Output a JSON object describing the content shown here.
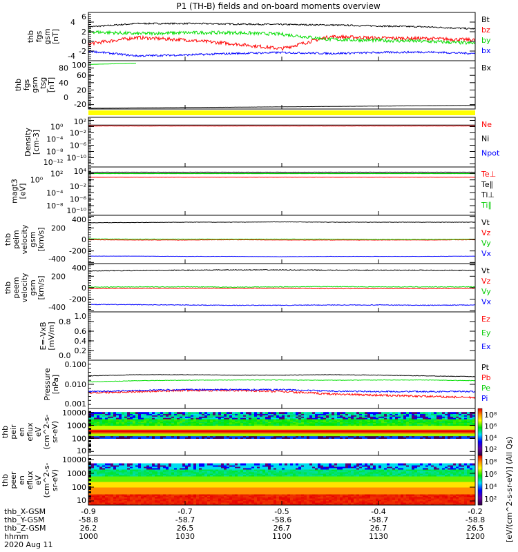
{
  "title": "P1 (TH-B) fields and on-board moments overview",
  "chart_data": [
    {
      "type": "line",
      "ylabel": [
        "thb",
        "fgs",
        "gsm",
        "[nT]"
      ],
      "log": false,
      "ylim": [
        -4,
        6
      ],
      "ticks": [
        "-4",
        "-2",
        "0",
        "2",
        "4",
        "6"
      ],
      "tickvals": [
        -4,
        -2,
        0,
        2,
        4,
        6
      ],
      "series": [
        {
          "name": "Bt",
          "color": "#000000",
          "values": [
            3.0,
            3.7,
            3.7,
            3.6,
            3.5,
            3.4,
            3.2,
            3.0,
            2.6
          ],
          "noise": 0.15
        },
        {
          "name": "bz",
          "color": "#ff0000",
          "values": [
            -0.5,
            0.8,
            0.3,
            -0.5,
            -1.5,
            1.0,
            0.7,
            0.6,
            0.3
          ],
          "noise": 0.35
        },
        {
          "name": "by",
          "color": "#00dd00",
          "values": [
            2.0,
            1.6,
            1.8,
            1.8,
            1.5,
            0.4,
            0.2,
            0.0,
            -0.4
          ],
          "noise": 0.35
        },
        {
          "name": "bx",
          "color": "#0000ff",
          "values": [
            -2.0,
            -3.0,
            -2.8,
            -2.5,
            -2.3,
            -2.5,
            -2.3,
            -2.2,
            -2.5
          ],
          "noise": 0.2
        }
      ]
    },
    {
      "type": "line",
      "ylabel": [
        "thb",
        "fgs",
        "gsm",
        "_tsg",
        "[nT]"
      ],
      "log": false,
      "ylim": [
        -32,
        100
      ],
      "ticks": [
        "-20",
        "0",
        "20",
        "40",
        "60",
        "80",
        "100"
      ],
      "tickvals": [
        -20,
        0,
        20,
        40,
        60,
        80,
        100
      ],
      "series": [
        {
          "name": "Bx",
          "color": "#000000",
          "values": [
            -30,
            -29,
            -28,
            -27,
            -26,
            -25,
            -24,
            -23,
            -22
          ],
          "noise": 0.2
        },
        {
          "name": "",
          "color": "#00dd00",
          "values": [
            90,
            93,
            null,
            null,
            null,
            null,
            null,
            null,
            null
          ],
          "noise": 0.2
        }
      ]
    },
    {
      "type": "line",
      "ylabel": [
        "Density",
        "[cm-3]"
      ],
      "log": true,
      "ylim": [
        -13,
        3
      ],
      "ticks": [
        "10⁻¹²",
        "10⁻¹⁰",
        "10⁻⁸",
        "10⁻⁶",
        "10⁻⁴",
        "10⁻²",
        "10⁰",
        "10²"
      ],
      "tickvals": [
        -12,
        -10,
        -8,
        -6,
        -4,
        -2,
        0,
        2
      ],
      "series": [
        {
          "name": "Ne",
          "color": "#ff0000",
          "values": [
            0.2,
            0.2,
            0.2,
            0.2,
            0.2,
            0.2,
            0.2,
            0.2,
            0.2
          ],
          "noise": 0.02
        },
        {
          "name": "Ni",
          "color": "#000000",
          "values": [
            0.5,
            0.5,
            0.5,
            0.5,
            0.5,
            0.5,
            0.5,
            0.5,
            0.5
          ],
          "noise": 0.01
        },
        {
          "name": "Npot",
          "color": "#0000ff",
          "values": [
            null,
            null,
            null,
            null,
            null,
            null,
            null,
            null,
            null
          ],
          "noise": 0
        }
      ]
    },
    {
      "type": "line",
      "ylabel": [
        "magt3",
        "[eV]"
      ],
      "log": true,
      "ylim": [
        -11,
        4
      ],
      "ticks": [
        "10⁻¹⁰",
        "10⁻⁸",
        "10⁻⁶",
        "10⁻⁴",
        "10⁻²",
        "10⁰",
        "10²",
        "10⁴"
      ],
      "tickvals": [
        -10,
        -8,
        -6,
        -4,
        -2,
        0,
        2,
        4
      ],
      "series": [
        {
          "name": "Te⊥",
          "color": "#ff0000",
          "values": [
            0.8,
            0.8,
            0.8,
            0.8,
            0.8,
            0.8,
            0.8,
            0.8,
            0.8
          ],
          "noise": 0.02
        },
        {
          "name": "Te∥",
          "color": "#000000",
          "values": [
            2.4,
            2.4,
            2.4,
            2.4,
            2.4,
            2.4,
            2.4,
            2.4,
            2.4
          ],
          "noise": 0.01
        },
        {
          "name": "Ti⊥",
          "color": "#000000",
          "values": [
            2.0,
            2.0,
            2.0,
            2.0,
            2.0,
            2.0,
            2.0,
            2.0,
            2.0
          ],
          "noise": 0.01
        },
        {
          "name": "Ti∥",
          "color": "#00dd00",
          "values": [
            1.95,
            1.95,
            1.95,
            1.95,
            1.95,
            1.95,
            1.95,
            1.95,
            1.95
          ],
          "noise": 0.01
        }
      ]
    },
    {
      "type": "line",
      "ylabel": [
        "thb",
        "peim",
        "velocity",
        "gsm",
        "[km/s]"
      ],
      "log": false,
      "ylim": [
        -420,
        420
      ],
      "ticks": [
        "-400",
        "-200",
        "0",
        "200",
        "400"
      ],
      "tickvals": [
        -400,
        -200,
        0,
        200,
        400
      ],
      "series": [
        {
          "name": "Vt",
          "color": "#000000",
          "values": [
            290,
            295,
            300,
            300,
            305,
            300,
            300,
            300,
            300
          ],
          "noise": 3
        },
        {
          "name": "Vz",
          "color": "#ff0000",
          "values": [
            -5,
            -10,
            -10,
            -5,
            -10,
            -10,
            -10,
            -10,
            -5
          ],
          "noise": 3
        },
        {
          "name": "Vy",
          "color": "#00dd00",
          "values": [
            10,
            5,
            5,
            5,
            5,
            5,
            0,
            0,
            5
          ],
          "noise": 3
        },
        {
          "name": "Vx",
          "color": "#0000ff",
          "values": [
            -290,
            -290,
            -295,
            -295,
            -300,
            -295,
            -295,
            -295,
            -290
          ],
          "noise": 2
        }
      ]
    },
    {
      "type": "line",
      "ylabel": [
        "thb",
        "peem",
        "velocity",
        "gsm",
        "[km/s]"
      ],
      "log": false,
      "ylim": [
        -420,
        420
      ],
      "ticks": [
        "-400",
        "-200",
        "0",
        "200",
        "400"
      ],
      "tickvals": [
        -400,
        -200,
        0,
        200,
        400
      ],
      "series": [
        {
          "name": "Vt",
          "color": "#000000",
          "values": [
            290,
            300,
            305,
            310,
            310,
            305,
            305,
            305,
            300
          ],
          "noise": 7
        },
        {
          "name": "Vz",
          "color": "#ff0000",
          "values": [
            -15,
            -10,
            -10,
            -10,
            -10,
            -15,
            -15,
            -15,
            -10
          ],
          "noise": 5
        },
        {
          "name": "Vy",
          "color": "#00dd00",
          "values": [
            10,
            15,
            15,
            10,
            15,
            20,
            15,
            15,
            15
          ],
          "noise": 6
        },
        {
          "name": "Vx",
          "color": "#0000ff",
          "values": [
            -290,
            -295,
            -300,
            -305,
            -305,
            -300,
            -300,
            -305,
            -300
          ],
          "noise": 6
        }
      ]
    },
    {
      "type": "line",
      "ylabel": [
        "E=-VxB",
        "[mV/m]"
      ],
      "log": false,
      "ylim": [
        0,
        1
      ],
      "ticks": [
        "0.0",
        "0.2",
        "0.4",
        "0.6",
        "0.8",
        "1.0"
      ],
      "tickvals": [
        0,
        0.2,
        0.4,
        0.6,
        0.8,
        1.0
      ],
      "series": [
        {
          "name": "Ez",
          "color": "#ff0000",
          "values": [],
          "noise": 0
        },
        {
          "name": "Ey",
          "color": "#00dd00",
          "values": [],
          "noise": 0
        },
        {
          "name": "Ex",
          "color": "#0000ff",
          "values": [],
          "noise": 0
        }
      ]
    },
    {
      "type": "line",
      "ylabel": [
        "Pressure",
        "[nPa]"
      ],
      "log": true,
      "ylim": [
        -3,
        -1
      ],
      "ticks": [
        "0.001",
        "0.010",
        "0.100"
      ],
      "tickvals": [
        -3,
        -2,
        -1
      ],
      "series": [
        {
          "name": "Pt",
          "color": "#000000",
          "values": [
            -1.65,
            -1.6,
            -1.6,
            -1.62,
            -1.62,
            -1.6,
            -1.62,
            -1.65,
            -1.68
          ],
          "noise": 0.01
        },
        {
          "name": "Pb",
          "color": "#ff0000",
          "values": [
            -2.35,
            -2.3,
            -2.25,
            -2.25,
            -2.3,
            -2.4,
            -2.45,
            -2.5,
            -2.55
          ],
          "noise": 0.04
        },
        {
          "name": "Pe",
          "color": "#00dd00",
          "values": [
            -1.9,
            -1.85,
            -1.83,
            -1.82,
            -1.82,
            -1.83,
            -1.82,
            -1.82,
            -1.85
          ],
          "noise": 0.01
        },
        {
          "name": "Pi",
          "color": "#0000ff",
          "values": [
            -2.3,
            -2.25,
            -2.22,
            -2.22,
            -2.22,
            -2.28,
            -2.3,
            -2.3,
            -2.3
          ],
          "noise": 0.03
        }
      ]
    },
    {
      "type": "heatmap",
      "ylabel": [
        "thb",
        "peir",
        "en",
        "eflux",
        "eV",
        "(cm^2-s-",
        "sr-eV)"
      ],
      "log": true,
      "ylim": [
        0.7,
        4.3
      ],
      "ticks": [
        "10",
        "100",
        "1000",
        "10000"
      ],
      "tickvals": [
        1,
        2,
        3,
        4
      ],
      "colorbar": {
        "ticks": [
          "10²",
          "10⁴",
          "10⁶",
          "10⁸"
        ],
        "range": [
          1,
          8
        ]
      }
    },
    {
      "type": "heatmap",
      "ylabel": [
        "thb",
        "peer",
        "en",
        "eflux",
        "eV",
        "(cm^2-s-",
        "sr-eV)"
      ],
      "log": true,
      "ylim": [
        0.7,
        4.3
      ],
      "ticks": [
        "10",
        "100",
        "1000",
        "10000"
      ],
      "tickvals": [
        1,
        2,
        3,
        4
      ],
      "colorbar": {
        "ticks": [
          "10²",
          "10⁴",
          "10⁶",
          "10⁸"
        ],
        "range": [
          1,
          8
        ]
      }
    }
  ],
  "colorbar_label": "[eV/(cm^2-s-sr-eV)] (All Qs)",
  "x_axis": {
    "row_labels": [
      "thb_X-GSM",
      "thb_Y-GSM",
      "thb_Z-GSM",
      "hhmm",
      "2020 Aug 11"
    ],
    "ticks": [
      {
        "x": "-0.9",
        "y": "-58.8",
        "z": "26.2",
        "hhmm": "1000"
      },
      {
        "x": "-0.7",
        "y": "-58.7",
        "z": "26.5",
        "hhmm": "1030"
      },
      {
        "x": "-0.5",
        "y": "-58.6",
        "z": "26.7",
        "hhmm": "1100"
      },
      {
        "x": "-0.4",
        "y": "-58.7",
        "z": "26.7",
        "hhmm": "1130"
      },
      {
        "x": "-0.2",
        "y": "-58.8",
        "z": "26.5",
        "hhmm": "1200"
      }
    ],
    "range_minutes": [
      0,
      120
    ]
  },
  "colors": {
    "flag_bar": "#ffff00"
  }
}
